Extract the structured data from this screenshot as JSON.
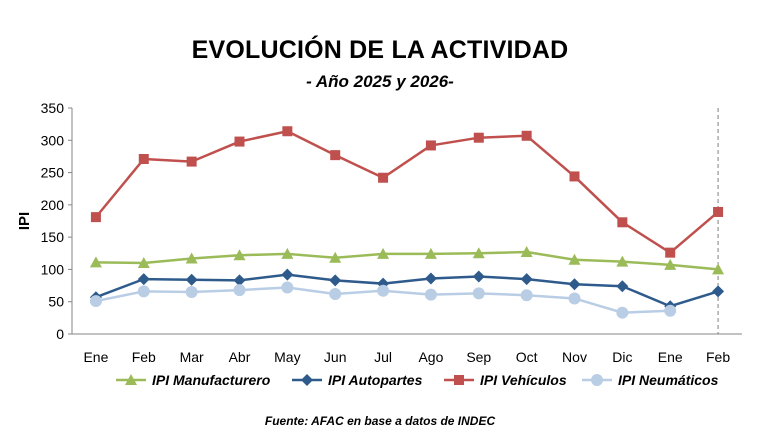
{
  "chart_data": {
    "type": "line",
    "title": "EVOLUCIÓN DE LA ACTIVIDAD",
    "subtitle": "- Año 2025 y 2026-",
    "xlabel": "",
    "ylabel": "IPI",
    "ylim": [
      0,
      350
    ],
    "yticks": [
      0,
      50,
      100,
      150,
      200,
      250,
      300,
      350
    ],
    "categories": [
      "Ene",
      "Feb",
      "Mar",
      "Abr",
      "May",
      "Jun",
      "Jul",
      "Ago",
      "Sep",
      "Oct",
      "Nov",
      "Dic",
      "Ene",
      "Feb"
    ],
    "grid": false,
    "legend_position": "bottom",
    "annotation": "dashed vertical line at last category (Feb)",
    "series": [
      {
        "name": "IPI Manufacturero",
        "color": "#9bbb59",
        "marker": "triangle",
        "values": [
          111,
          110,
          117,
          122,
          124,
          118,
          124,
          124,
          125,
          127,
          115,
          112,
          107,
          100
        ]
      },
      {
        "name": "IPI Autopartes",
        "color": "#2f5b8c",
        "marker": "diamond",
        "values": [
          57,
          85,
          84,
          83,
          92,
          83,
          78,
          86,
          89,
          85,
          77,
          74,
          43,
          66
        ]
      },
      {
        "name": "IPI Vehículos",
        "color": "#c0504d",
        "marker": "square",
        "values": [
          181,
          271,
          267,
          298,
          314,
          277,
          242,
          292,
          304,
          307,
          244,
          173,
          126,
          189
        ]
      },
      {
        "name": "IPI Neumáticos",
        "color": "#b9cde5",
        "marker": "circle",
        "values": [
          51,
          66,
          65,
          68,
          72,
          62,
          67,
          61,
          63,
          60,
          55,
          33,
          36,
          null
        ]
      }
    ],
    "source": "Fuente: AFAC en base a datos de INDEC"
  }
}
